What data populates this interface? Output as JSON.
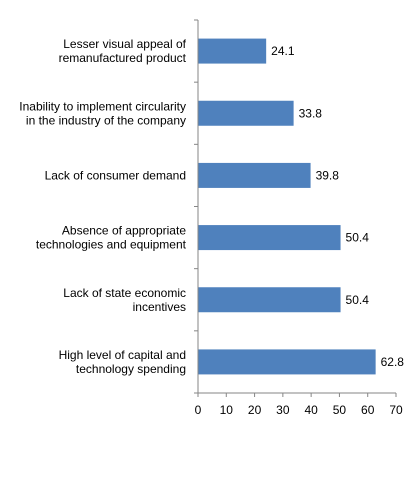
{
  "chart_data": {
    "type": "bar",
    "orientation": "horizontal",
    "categories": [
      "Lesser visual appeal of\nremanufactured product",
      "Inability to implement circularity\nin the industry of the company",
      "Lack of consumer demand",
      "Absence of appropriate\ntechnologies and equipment",
      "Lack of state economic\nincentives",
      "High level of capital and\ntechnology spending"
    ],
    "values": [
      24.1,
      33.8,
      39.8,
      50.4,
      50.4,
      62.8
    ],
    "data_labels": [
      "24.1",
      "33.8",
      "39.8",
      "50.4",
      "50.4",
      "62.8"
    ],
    "x_ticks": [
      "0",
      "10",
      "20",
      "30",
      "40",
      "50",
      "60",
      "70"
    ],
    "xlim": [
      0,
      70
    ],
    "title": "",
    "xlabel": "",
    "ylabel": "",
    "grid": false,
    "legend": "none",
    "bar_color": "#4f81bd"
  }
}
